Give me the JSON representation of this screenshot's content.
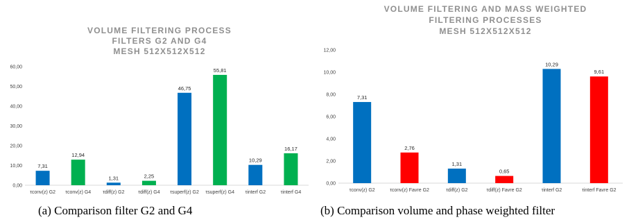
{
  "chart_data": [
    {
      "type": "bar",
      "title_lines": [
        "VOLUME FILTERING PROCESS",
        "FILTERS G2 AND G4",
        "MESH 512X512X512"
      ],
      "categories": [
        "τconv(z) G2",
        "τconv(z) G4",
        "τdiff(z) G2",
        "τdiff(z) G4",
        "τsuperf(z) G2",
        "τsuperf(z) G4",
        "τinterf G2",
        "τinterf G4"
      ],
      "values": [
        7.31,
        12.94,
        1.31,
        2.25,
        46.75,
        55.81,
        10.29,
        16.17
      ],
      "value_labels": [
        "7,31",
        "12,94",
        "1,31",
        "2,25",
        "46,75",
        "55,81",
        "10,29",
        "16,17"
      ],
      "colors": [
        "#0070c0",
        "#00b050",
        "#0070c0",
        "#00b050",
        "#0070c0",
        "#00b050",
        "#0070c0",
        "#00b050"
      ],
      "ylim": [
        0,
        60
      ],
      "yticks": [
        0,
        10,
        20,
        30,
        40,
        50,
        60
      ],
      "ytick_labels": [
        "0,00",
        "10,00",
        "20,00",
        "30,00",
        "40,00",
        "50,00",
        "60,00"
      ],
      "grid": false,
      "legend": "none",
      "caption": "(a) Comparison filter G2 and G4"
    },
    {
      "type": "bar",
      "title_lines": [
        "VOLUME FILTERING AND MASS WEIGHTED",
        "FILTERING PROCESSES",
        "MESH 512X512X512"
      ],
      "categories": [
        "τconv(z) G2",
        "τconv(z) Favre G2",
        "τdiff(z) G2",
        "τdiff(z) Favre G2",
        "τinterf G2",
        "τinterf Favre G2"
      ],
      "values": [
        7.31,
        2.76,
        1.31,
        0.65,
        10.29,
        9.61
      ],
      "value_labels": [
        "7,31",
        "2,76",
        "1,31",
        "0,65",
        "10,29",
        "9,61"
      ],
      "colors": [
        "#0070c0",
        "#ff0000",
        "#0070c0",
        "#ff0000",
        "#0070c0",
        "#ff0000"
      ],
      "ylim": [
        0,
        12
      ],
      "yticks": [
        0,
        2,
        4,
        6,
        8,
        10,
        12
      ],
      "ytick_labels": [
        "0,00",
        "2,00",
        "4,00",
        "6,00",
        "8,00",
        "10,00",
        "12,00"
      ],
      "grid": false,
      "legend": "none",
      "caption": "(b) Comparison volume and phase weighted filter"
    }
  ]
}
